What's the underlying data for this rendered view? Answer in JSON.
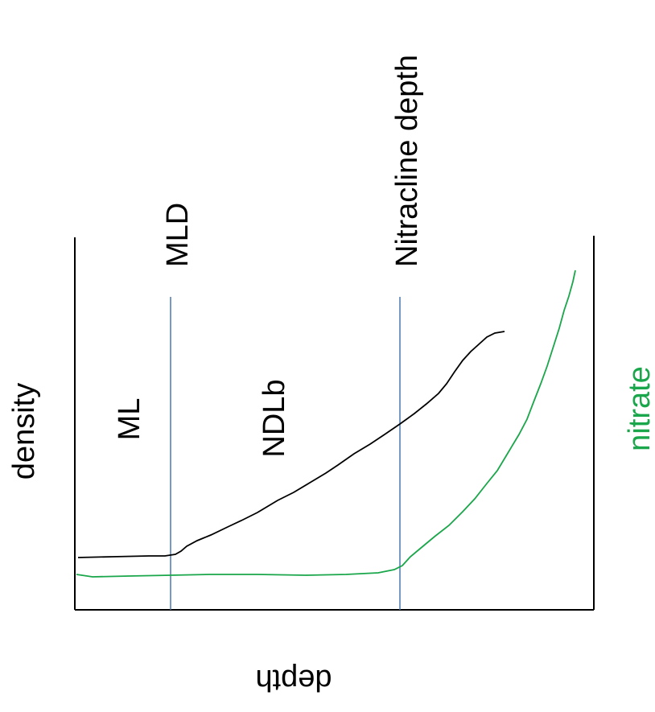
{
  "labels": {
    "mld": "MLD",
    "nitracline_depth": "Nitracline  depth",
    "ml": "ML",
    "ndlb": "NDLb",
    "density": "density",
    "nitrate": "nitrate",
    "depth": "depth"
  },
  "colors": {
    "axis": "#000000",
    "density_curve": "#000000",
    "nitrate_curve": "#1aa64a",
    "marker_lines": "#4a78b0",
    "nitrate_label": "#1aa64a"
  }
}
